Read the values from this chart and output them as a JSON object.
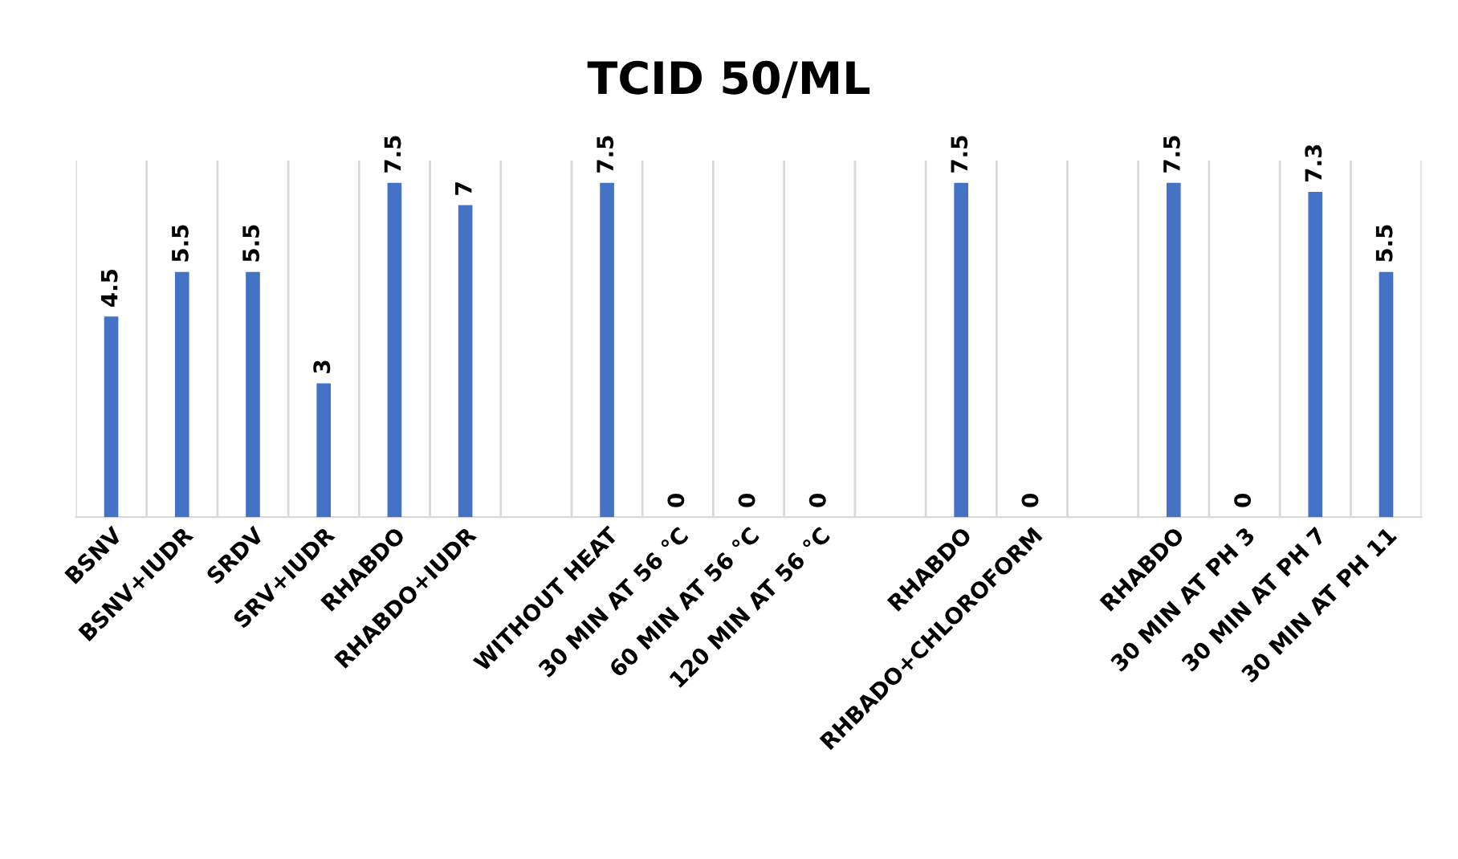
{
  "chart_data": {
    "type": "bar",
    "title": "TCID 50/ML",
    "categories": [
      "BSNV",
      "BSNV+IUDR",
      "SRDV",
      "SRV+IUDR",
      "RHABDO",
      "RHABDO+IUDR",
      null,
      "WITHOUT HEAT",
      "30 MIN AT 56 °C",
      "60 MIN AT 56 °C",
      "120 MIN AT 56 °C",
      null,
      "RHABDO",
      "RHBADO+CHLOROFORM",
      null,
      "RHABDO",
      "30 MIN AT PH 3",
      "30 MIN AT PH 7",
      "30 MIN AT PH 11"
    ],
    "values": [
      4.5,
      5.5,
      5.5,
      3,
      7.5,
      7,
      null,
      7.5,
      0,
      0,
      0,
      null,
      7.5,
      0,
      null,
      7.5,
      0,
      7.3,
      5.5
    ],
    "color": "#4472c4",
    "ylim": [
      0,
      8
    ],
    "grid": "x",
    "data_labels": true
  }
}
